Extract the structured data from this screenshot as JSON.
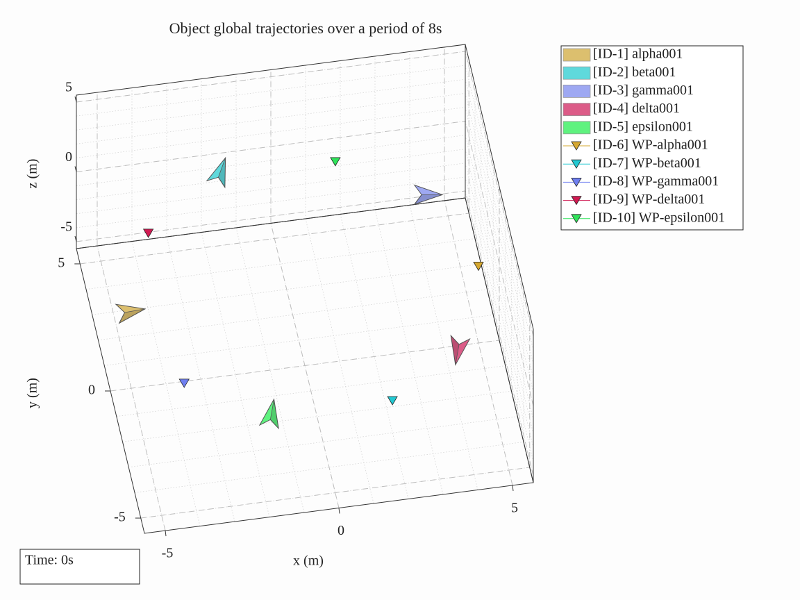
{
  "chart_data": {
    "type": "scatter3d",
    "title": "Object global trajectories over a period of 8s",
    "x_label": "x (m)",
    "y_label": "y (m)",
    "z_label": "z (m)",
    "time_label": "Time: 0s",
    "xlim": [
      -5.6,
      5.6
    ],
    "ylim": [
      -5.6,
      5.6
    ],
    "zlim": [
      -5.5,
      5.5
    ],
    "xticks": [
      -5,
      0,
      5
    ],
    "yticks": [
      -5,
      0,
      5
    ],
    "zticks": [
      -5,
      0,
      5
    ],
    "grid": true,
    "minor_grid": true,
    "legend_position": "outside-right",
    "series": [
      {
        "name": "[ID-1] alpha001",
        "marker": "aircraft",
        "color": "#dcbf6e",
        "x": [
          -5.1
        ],
        "y": [
          0.0
        ],
        "z": [
          0
        ],
        "heading": [
          -10
        ]
      },
      {
        "name": "[ID-2] beta001",
        "marker": "aircraft",
        "color": "#5fd9dc",
        "x": [
          -1.9
        ],
        "y": [
          3.2
        ],
        "z": [
          3
        ],
        "heading": [
          -70
        ]
      },
      {
        "name": "[ID-3] gamma001",
        "marker": "aircraft",
        "color": "#9ea8f2",
        "x": [
          3.7
        ],
        "y": [
          1.4
        ],
        "z": [
          3
        ],
        "heading": [
          0
        ]
      },
      {
        "name": "[ID-4] delta001",
        "marker": "aircraft",
        "color": "#dc5c88",
        "x": [
          3.9
        ],
        "y": [
          -3.0
        ],
        "z": [
          0
        ],
        "heading": [
          100
        ]
      },
      {
        "name": "[ID-5] epsilon001",
        "marker": "aircraft",
        "color": "#5ff27f",
        "x": [
          -1.8
        ],
        "y": [
          -4.7
        ],
        "z": [
          0
        ],
        "heading": [
          -80
        ]
      },
      {
        "name": "[ID-6] WP-alpha001",
        "marker": "triangle",
        "color": "#d6a830",
        "x": [
          5.0
        ],
        "y": [
          0.0
        ],
        "z": [
          0
        ]
      },
      {
        "name": "[ID-7] WP-beta001",
        "marker": "triangle",
        "color": "#22c9d2",
        "x": [
          1.7
        ],
        "y": [
          -4.7
        ],
        "z": [
          0
        ]
      },
      {
        "name": "[ID-8] WP-gamma001",
        "marker": "triangle",
        "color": "#6f7ff0",
        "x": [
          -4.0
        ],
        "y": [
          -3.0
        ],
        "z": [
          0
        ]
      },
      {
        "name": "[ID-9] WP-delta001",
        "marker": "triangle",
        "color": "#d11a52",
        "x": [
          -4.0
        ],
        "y": [
          2.9
        ],
        "z": [
          0
        ]
      },
      {
        "name": "[ID-10] WP-epsilon001",
        "marker": "triangle",
        "color": "#2fe35a",
        "x": [
          1.7
        ],
        "y": [
          4.7
        ],
        "z": [
          0
        ]
      }
    ]
  }
}
